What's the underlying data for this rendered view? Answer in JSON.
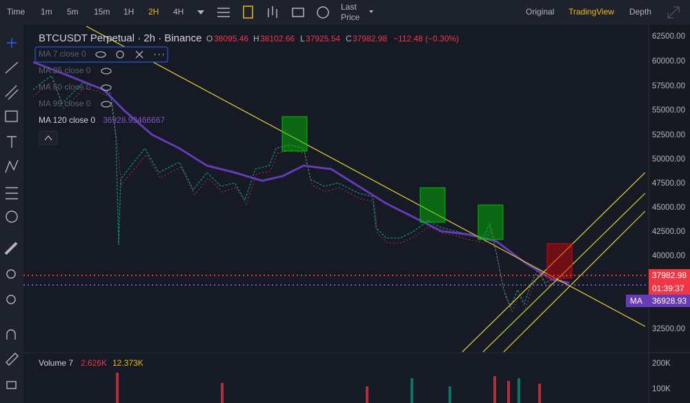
{
  "toolbar": {
    "intervals": [
      "Time",
      "1m",
      "5m",
      "15m",
      "1H",
      "2H",
      "4H"
    ],
    "price_mode": [
      "Last",
      "Price"
    ],
    "views": [
      "Original",
      "TradingView",
      "Depth"
    ]
  },
  "legend": {
    "symbol": "BTCUSDT Perpetual · 2h · Binance",
    "open_label": "O",
    "open": "38095.46",
    "high_label": "H",
    "high": "38102.66",
    "low_label": "L",
    "low": "37925.54",
    "close_label": "C",
    "close": "37982.98",
    "change": "−112.48 (−0.30%)",
    "indicators": [
      "MA 7 close 0",
      "MA 25 close 0",
      "MA 60 close 0",
      "MA 99 close 0"
    ],
    "ma120": "MA 120 close 0",
    "ma120_value": "36928.93466667"
  },
  "price_axis": {
    "labels": [
      "62500.00",
      "60000.00",
      "57500.00",
      "55000.00",
      "52500.00",
      "50000.00",
      "47500.00",
      "45000.00",
      "42500.00",
      "40000.00",
      "32500.00"
    ],
    "current_price": "37982.98",
    "countdown": "01:39:37",
    "ma_tag": "MA",
    "ma_price": "36928.93"
  },
  "volume": {
    "title": "Volume 7",
    "value": "2.626K",
    "ma_value": "12.373K",
    "axis": [
      "200K",
      "100K"
    ]
  }
}
